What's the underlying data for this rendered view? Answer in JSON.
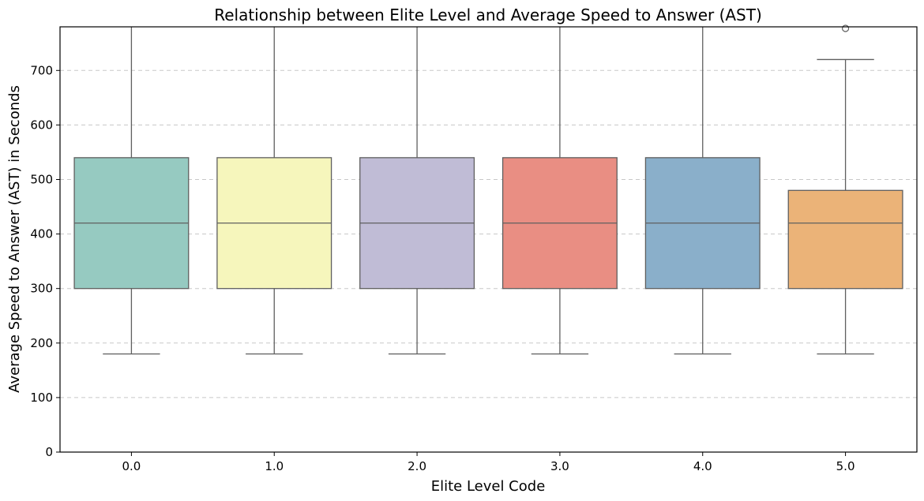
{
  "chart_data": {
    "type": "box",
    "title": "Relationship between Elite Level and Average Speed to Answer (AST)",
    "xlabel": "Elite Level Code",
    "ylabel": "Average Speed to Answer (AST) in Seconds",
    "categories": [
      "0.0",
      "1.0",
      "2.0",
      "3.0",
      "4.0",
      "5.0"
    ],
    "ylim": [
      0,
      780
    ],
    "yticks": [
      0,
      100,
      200,
      300,
      400,
      500,
      600,
      700
    ],
    "grid": "y-dashed",
    "boxes": [
      {
        "category": "0.0",
        "whislo": 180,
        "q1": 300,
        "med": 420,
        "q3": 540,
        "whishi": 780,
        "fliers": [],
        "color": "#96cac1"
      },
      {
        "category": "1.0",
        "whislo": 180,
        "q1": 300,
        "med": 420,
        "q3": 540,
        "whishi": 780,
        "fliers": [],
        "color": "#f6f6bc"
      },
      {
        "category": "2.0",
        "whislo": 180,
        "q1": 300,
        "med": 420,
        "q3": 540,
        "whishi": 780,
        "fliers": [],
        "color": "#c0bcd6"
      },
      {
        "category": "3.0",
        "whislo": 180,
        "q1": 300,
        "med": 420,
        "q3": 540,
        "whishi": 780,
        "fliers": [],
        "color": "#e98e83"
      },
      {
        "category": "4.0",
        "whislo": 180,
        "q1": 300,
        "med": 420,
        "q3": 540,
        "whishi": 780,
        "fliers": [],
        "color": "#8aafca"
      },
      {
        "category": "5.0",
        "whislo": 180,
        "q1": 300,
        "med": 420,
        "q3": 480,
        "whishi": 720,
        "fliers": [
          780
        ],
        "color": "#ebb378"
      }
    ]
  }
}
